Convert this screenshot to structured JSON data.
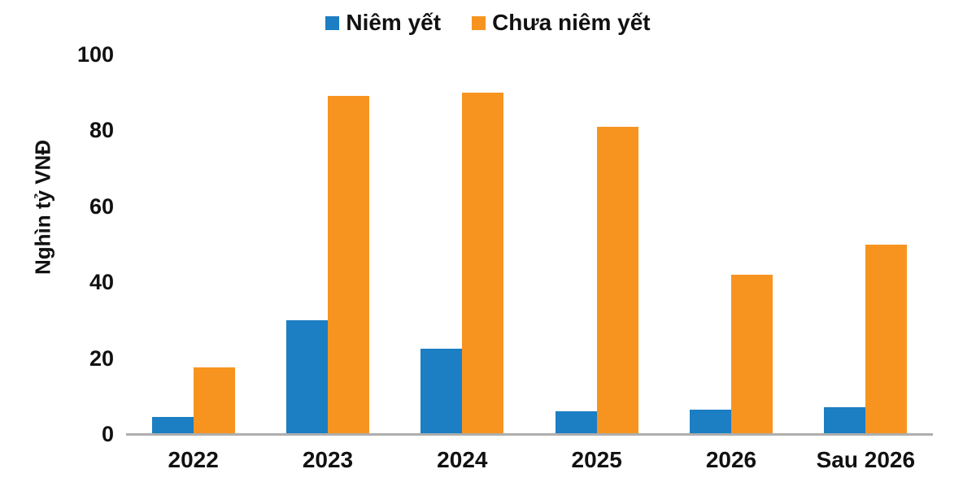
{
  "chart_data": {
    "type": "bar",
    "title": "",
    "xlabel": "",
    "ylabel": "Nghìn tỷ VNĐ",
    "categories": [
      "2022",
      "2023",
      "2024",
      "2025",
      "2026",
      "Sau 2026"
    ],
    "series": [
      {
        "name": "Niêm yết",
        "color": "#1C7EC3",
        "values": [
          4.5,
          30,
          22.5,
          6,
          6.5,
          7
        ]
      },
      {
        "name": "Chưa niêm yết",
        "color": "#F79420",
        "values": [
          17.5,
          89,
          90,
          81,
          42,
          50
        ]
      }
    ],
    "ylim": [
      0,
      100
    ],
    "yticks": [
      0,
      20,
      40,
      60,
      80,
      100
    ],
    "grid": false,
    "legend_position": "top-center",
    "axis_color": "#aeaeae",
    "text_color": "#111111"
  }
}
